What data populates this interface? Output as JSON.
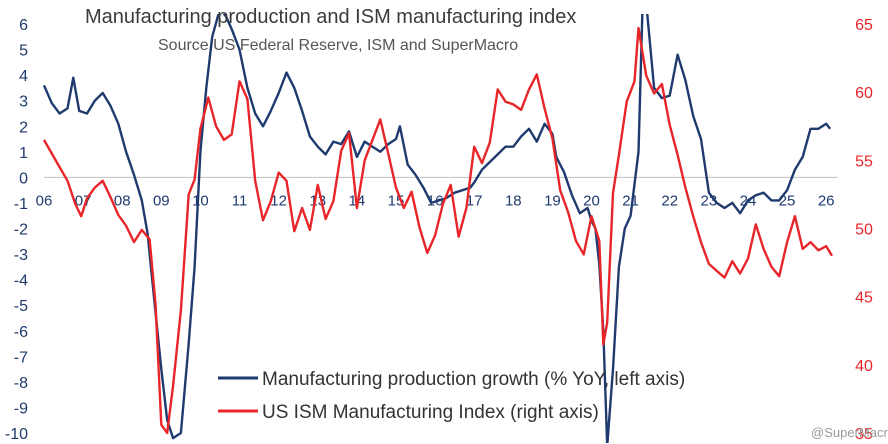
{
  "chart_data": {
    "type": "line",
    "title": "Manufacturing production and ISM manufacturing index",
    "subtitle": "Source US Federal Reserve, ISM and SuperMacro",
    "watermark": "@SuperMacro",
    "x_ticks": [
      "06",
      "07",
      "08",
      "09",
      "10",
      "11",
      "12",
      "13",
      "14",
      "15",
      "16",
      "17",
      "18",
      "19",
      "20",
      "21",
      "22",
      "23",
      "24",
      "25",
      "26"
    ],
    "x_range": [
      2006.0,
      2026.2
    ],
    "left_axis": {
      "label": "Manufacturing production growth (% YoY)",
      "range": [
        -10,
        6
      ],
      "ticks": [
        "6",
        "5",
        "4",
        "3",
        "2",
        "1",
        "0",
        "-1",
        "-2",
        "-3",
        "-4",
        "-5",
        "-6",
        "-7",
        "-8",
        "-9",
        "-10"
      ]
    },
    "right_axis": {
      "label": "US ISM Manufacturing Index",
      "range": [
        35,
        65
      ],
      "ticks": [
        "65",
        "60",
        "55",
        "50",
        "45",
        "40",
        "35"
      ]
    },
    "legend": {
      "position": "bottom-center"
    },
    "colors": {
      "production": "#1f3a6e",
      "ism": "#e8262a",
      "zero_line": "#bfbfbf"
    },
    "series": [
      {
        "name": "Manufacturing production  growth (% YoY, left axis)",
        "axis": "left",
        "points": [
          [
            2006.0,
            3.6
          ],
          [
            2006.2,
            2.9
          ],
          [
            2006.4,
            2.5
          ],
          [
            2006.6,
            2.7
          ],
          [
            2006.75,
            3.9
          ],
          [
            2006.9,
            2.6
          ],
          [
            2007.1,
            2.5
          ],
          [
            2007.3,
            3.0
          ],
          [
            2007.5,
            3.3
          ],
          [
            2007.7,
            2.8
          ],
          [
            2007.9,
            2.1
          ],
          [
            2008.1,
            1.0
          ],
          [
            2008.3,
            0.1
          ],
          [
            2008.5,
            -0.9
          ],
          [
            2008.65,
            -2.2
          ],
          [
            2008.8,
            -4.5
          ],
          [
            2009.0,
            -7.5
          ],
          [
            2009.15,
            -9.5
          ],
          [
            2009.3,
            -10.2
          ],
          [
            2009.5,
            -10.0
          ],
          [
            2009.7,
            -6.5
          ],
          [
            2009.85,
            -3.5
          ],
          [
            2010.0,
            1.0
          ],
          [
            2010.15,
            3.5
          ],
          [
            2010.3,
            5.5
          ],
          [
            2010.5,
            6.6
          ],
          [
            2010.65,
            6.3
          ],
          [
            2010.8,
            5.8
          ],
          [
            2011.0,
            5.0
          ],
          [
            2011.2,
            3.5
          ],
          [
            2011.4,
            2.5
          ],
          [
            2011.6,
            2.0
          ],
          [
            2011.8,
            2.6
          ],
          [
            2012.0,
            3.3
          ],
          [
            2012.2,
            4.1
          ],
          [
            2012.4,
            3.5
          ],
          [
            2012.6,
            2.6
          ],
          [
            2012.8,
            1.6
          ],
          [
            2013.0,
            1.2
          ],
          [
            2013.2,
            0.9
          ],
          [
            2013.4,
            1.4
          ],
          [
            2013.6,
            1.3
          ],
          [
            2013.8,
            1.8
          ],
          [
            2014.0,
            0.8
          ],
          [
            2014.2,
            1.4
          ],
          [
            2014.4,
            1.2
          ],
          [
            2014.6,
            1.0
          ],
          [
            2014.8,
            1.3
          ],
          [
            2015.0,
            1.5
          ],
          [
            2015.1,
            2.0
          ],
          [
            2015.3,
            0.5
          ],
          [
            2015.5,
            0.1
          ],
          [
            2015.7,
            -0.4
          ],
          [
            2015.9,
            -1.0
          ],
          [
            2016.1,
            -0.9
          ],
          [
            2016.3,
            -0.8
          ],
          [
            2016.5,
            -0.6
          ],
          [
            2016.7,
            -0.5
          ],
          [
            2016.9,
            -0.4
          ],
          [
            2017.0,
            -0.2
          ],
          [
            2017.2,
            0.3
          ],
          [
            2017.4,
            0.6
          ],
          [
            2017.6,
            0.9
          ],
          [
            2017.8,
            1.2
          ],
          [
            2018.0,
            1.2
          ],
          [
            2018.2,
            1.6
          ],
          [
            2018.4,
            1.9
          ],
          [
            2018.6,
            1.4
          ],
          [
            2018.8,
            2.1
          ],
          [
            2019.0,
            1.7
          ],
          [
            2019.1,
            0.8
          ],
          [
            2019.3,
            0.2
          ],
          [
            2019.5,
            -0.7
          ],
          [
            2019.7,
            -1.4
          ],
          [
            2019.9,
            -1.2
          ],
          [
            2020.0,
            -1.7
          ],
          [
            2020.1,
            -2.0
          ],
          [
            2020.2,
            -3.4
          ],
          [
            2020.3,
            -6.0
          ],
          [
            2020.4,
            -10.5
          ],
          [
            2020.55,
            -7.5
          ],
          [
            2020.7,
            -3.5
          ],
          [
            2020.85,
            -2.0
          ],
          [
            2021.0,
            -1.5
          ],
          [
            2021.2,
            1.0
          ],
          [
            2021.3,
            6.5
          ],
          [
            2021.4,
            6.8
          ],
          [
            2021.6,
            3.5
          ],
          [
            2021.8,
            3.1
          ],
          [
            2022.0,
            3.2
          ],
          [
            2022.2,
            4.8
          ],
          [
            2022.4,
            3.8
          ],
          [
            2022.6,
            2.4
          ],
          [
            2022.8,
            1.5
          ],
          [
            2023.0,
            -0.6
          ],
          [
            2023.2,
            -1.0
          ],
          [
            2023.4,
            -1.2
          ],
          [
            2023.6,
            -1.0
          ],
          [
            2023.8,
            -1.4
          ],
          [
            2024.0,
            -0.9
          ],
          [
            2024.2,
            -0.7
          ],
          [
            2024.4,
            -0.6
          ],
          [
            2024.6,
            -0.9
          ],
          [
            2024.8,
            -0.9
          ],
          [
            2025.0,
            -0.5
          ],
          [
            2025.2,
            0.3
          ],
          [
            2025.4,
            0.8
          ],
          [
            2025.6,
            1.9
          ],
          [
            2025.8,
            1.9
          ],
          [
            2026.0,
            2.1
          ],
          [
            2026.1,
            1.9
          ]
        ]
      },
      {
        "name": "US ISM Manufacturing Index (right axis)",
        "axis": "right",
        "points": [
          [
            2006.0,
            56.5
          ],
          [
            2006.2,
            55.5
          ],
          [
            2006.4,
            54.5
          ],
          [
            2006.6,
            53.5
          ],
          [
            2006.8,
            51.8
          ],
          [
            2006.95,
            50.9
          ],
          [
            2007.1,
            52.2
          ],
          [
            2007.3,
            53.0
          ],
          [
            2007.5,
            53.5
          ],
          [
            2007.7,
            52.3
          ],
          [
            2007.9,
            51.0
          ],
          [
            2008.1,
            50.2
          ],
          [
            2008.3,
            49.0
          ],
          [
            2008.5,
            49.9
          ],
          [
            2008.7,
            49.2
          ],
          [
            2008.85,
            44.5
          ],
          [
            2009.0,
            35.6
          ],
          [
            2009.15,
            35.0
          ],
          [
            2009.3,
            38.5
          ],
          [
            2009.5,
            44.0
          ],
          [
            2009.7,
            52.5
          ],
          [
            2009.85,
            53.6
          ],
          [
            2010.0,
            57.3
          ],
          [
            2010.2,
            59.6
          ],
          [
            2010.4,
            57.5
          ],
          [
            2010.6,
            56.5
          ],
          [
            2010.8,
            56.9
          ],
          [
            2011.0,
            60.8
          ],
          [
            2011.2,
            59.5
          ],
          [
            2011.4,
            53.5
          ],
          [
            2011.6,
            50.6
          ],
          [
            2011.8,
            52.0
          ],
          [
            2012.0,
            54.1
          ],
          [
            2012.2,
            53.5
          ],
          [
            2012.4,
            49.8
          ],
          [
            2012.6,
            51.5
          ],
          [
            2012.8,
            49.9
          ],
          [
            2013.0,
            53.2
          ],
          [
            2013.2,
            50.7
          ],
          [
            2013.4,
            52.0
          ],
          [
            2013.6,
            55.7
          ],
          [
            2013.8,
            57.0
          ],
          [
            2014.0,
            51.5
          ],
          [
            2014.2,
            55.0
          ],
          [
            2014.4,
            56.5
          ],
          [
            2014.6,
            58.0
          ],
          [
            2014.8,
            55.5
          ],
          [
            2015.0,
            53.0
          ],
          [
            2015.2,
            51.5
          ],
          [
            2015.4,
            52.7
          ],
          [
            2015.6,
            50.1
          ],
          [
            2015.8,
            48.2
          ],
          [
            2016.0,
            49.5
          ],
          [
            2016.2,
            51.8
          ],
          [
            2016.4,
            53.2
          ],
          [
            2016.6,
            49.4
          ],
          [
            2016.8,
            51.5
          ],
          [
            2017.0,
            56.0
          ],
          [
            2017.2,
            54.8
          ],
          [
            2017.4,
            56.3
          ],
          [
            2017.6,
            60.2
          ],
          [
            2017.8,
            59.3
          ],
          [
            2018.0,
            59.1
          ],
          [
            2018.2,
            58.7
          ],
          [
            2018.4,
            60.2
          ],
          [
            2018.6,
            61.3
          ],
          [
            2018.8,
            58.8
          ],
          [
            2019.0,
            56.6
          ],
          [
            2019.2,
            52.8
          ],
          [
            2019.4,
            51.2
          ],
          [
            2019.6,
            49.1
          ],
          [
            2019.8,
            48.1
          ],
          [
            2020.0,
            50.9
          ],
          [
            2020.2,
            49.1
          ],
          [
            2020.3,
            41.5
          ],
          [
            2020.4,
            43.1
          ],
          [
            2020.55,
            52.6
          ],
          [
            2020.7,
            55.4
          ],
          [
            2020.9,
            59.3
          ],
          [
            2021.1,
            60.8
          ],
          [
            2021.2,
            64.7
          ],
          [
            2021.4,
            61.2
          ],
          [
            2021.6,
            59.9
          ],
          [
            2021.8,
            60.6
          ],
          [
            2022.0,
            57.6
          ],
          [
            2022.2,
            55.4
          ],
          [
            2022.4,
            53.0
          ],
          [
            2022.6,
            50.9
          ],
          [
            2022.8,
            49.0
          ],
          [
            2023.0,
            47.4
          ],
          [
            2023.2,
            46.9
          ],
          [
            2023.4,
            46.4
          ],
          [
            2023.6,
            47.6
          ],
          [
            2023.8,
            46.7
          ],
          [
            2024.0,
            47.8
          ],
          [
            2024.2,
            50.3
          ],
          [
            2024.4,
            48.5
          ],
          [
            2024.6,
            47.2
          ],
          [
            2024.8,
            46.5
          ],
          [
            2025.0,
            49.0
          ],
          [
            2025.2,
            50.9
          ],
          [
            2025.4,
            48.5
          ],
          [
            2025.6,
            49.0
          ],
          [
            2025.8,
            48.4
          ],
          [
            2026.0,
            48.7
          ],
          [
            2026.15,
            48.0
          ]
        ]
      }
    ]
  }
}
